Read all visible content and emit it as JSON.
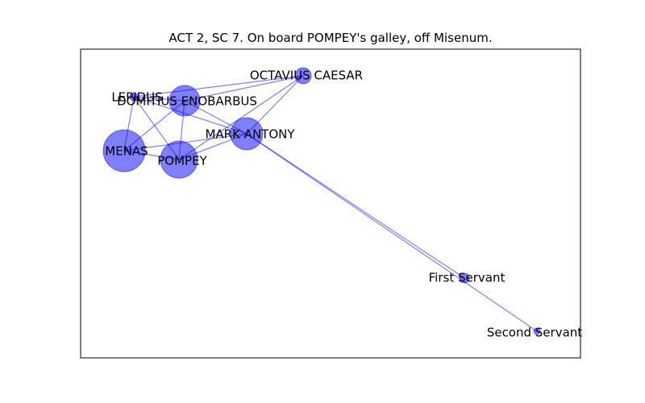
{
  "title": "ACT 2, SC 7. On board POMPEY's galley, off Misenum.",
  "colors": {
    "node_fill": "#0000ff",
    "edge_stroke": "#0000ff",
    "frame": "#000000"
  },
  "nodes": [
    {
      "id": "octavius",
      "label": "OCTAVIUS CAESAR"
    },
    {
      "id": "lepidus",
      "label": "LEPIDUS"
    },
    {
      "id": "enobarbus",
      "label": "DOMITIUS ENOBARBUS"
    },
    {
      "id": "antony",
      "label": "MARK ANTONY"
    },
    {
      "id": "menas",
      "label": "MENAS"
    },
    {
      "id": "pompey",
      "label": "POMPEY"
    },
    {
      "id": "servant1",
      "label": "First Servant"
    },
    {
      "id": "servant2",
      "label": "Second Servant"
    }
  ],
  "edges": [
    [
      "octavius",
      "enobarbus"
    ],
    [
      "octavius",
      "antony"
    ],
    [
      "octavius",
      "lepidus"
    ],
    [
      "octavius",
      "pompey"
    ],
    [
      "lepidus",
      "enobarbus"
    ],
    [
      "lepidus",
      "menas"
    ],
    [
      "lepidus",
      "pompey"
    ],
    [
      "lepidus",
      "antony"
    ],
    [
      "enobarbus",
      "menas"
    ],
    [
      "enobarbus",
      "pompey"
    ],
    [
      "enobarbus",
      "antony"
    ],
    [
      "antony",
      "menas"
    ],
    [
      "antony",
      "pompey"
    ],
    [
      "antony",
      "servant1"
    ],
    [
      "antony",
      "servant2"
    ],
    [
      "menas",
      "pompey"
    ]
  ]
}
